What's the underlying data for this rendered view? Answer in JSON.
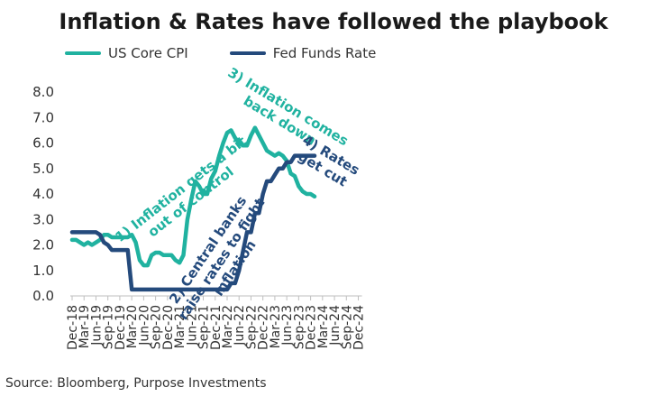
{
  "title": "Inflation & Rates have followed the playbook",
  "source": "Source: Bloomberg, Purpose Investments",
  "colors": {
    "cpi": "#20b2a0",
    "fed": "#244a7c",
    "axis": "#333333"
  },
  "chart_data": {
    "type": "line",
    "title": "Inflation & Rates have followed the playbook",
    "ylim": [
      0,
      8
    ],
    "yticks": [
      "0.0",
      "1.0",
      "2.0",
      "3.0",
      "4.0",
      "5.0",
      "6.0",
      "7.0",
      "8.0"
    ],
    "grid": false,
    "legend_position": "top-left",
    "x_tick_labels": [
      "Dec-18",
      "Mar-19",
      "Jun-19",
      "Sep-19",
      "Dec-19",
      "Mar-20",
      "Jun-20",
      "Sep-20",
      "Dec-20",
      "Mar-21",
      "Jun-21",
      "Sep-21",
      "Dec-21",
      "Mar-22",
      "Jun-22",
      "Sep-22",
      "Dec-22",
      "Mar-23",
      "Jun-23",
      "Sep-23",
      "Dec-23",
      "Mar-24",
      "Jun-24",
      "Sep-24",
      "Dec-24"
    ],
    "series": [
      {
        "name": "US Core CPI",
        "color": "#20b2a0",
        "values": [
          2.2,
          2.2,
          2.1,
          2.0,
          2.1,
          2.0,
          2.1,
          2.2,
          2.4,
          2.4,
          2.3,
          2.3,
          2.3,
          2.3,
          2.3,
          2.4,
          2.1,
          1.4,
          1.2,
          1.2,
          1.6,
          1.7,
          1.7,
          1.6,
          1.6,
          1.6,
          1.4,
          1.3,
          1.6,
          3.0,
          3.8,
          4.5,
          4.3,
          4.0,
          4.0,
          4.6,
          4.9,
          5.5,
          6.0,
          6.4,
          6.5,
          6.2,
          6.0,
          5.9,
          5.9,
          6.3,
          6.6,
          6.3,
          6.0,
          5.7,
          5.6,
          5.5,
          5.6,
          5.5,
          5.3,
          4.8,
          4.7,
          4.3,
          4.1,
          4.0,
          4.0,
          3.9
        ]
      },
      {
        "name": "Fed Funds Rate",
        "color": "#244a7c",
        "values": [
          2.5,
          2.5,
          2.5,
          2.5,
          2.5,
          2.5,
          2.5,
          2.4,
          2.1,
          2.0,
          1.8,
          1.8,
          1.8,
          1.8,
          1.8,
          0.25,
          0.25,
          0.25,
          0.25,
          0.25,
          0.25,
          0.25,
          0.25,
          0.25,
          0.25,
          0.25,
          0.25,
          0.25,
          0.25,
          0.25,
          0.25,
          0.25,
          0.25,
          0.25,
          0.25,
          0.25,
          0.25,
          0.25,
          0.25,
          0.25,
          0.5,
          0.5,
          1.0,
          1.75,
          2.5,
          2.5,
          3.25,
          3.25,
          4.0,
          4.5,
          4.5,
          4.75,
          5.0,
          5.0,
          5.25,
          5.25,
          5.5,
          5.5,
          5.5,
          5.5,
          5.5,
          5.5
        ]
      }
    ],
    "annotations": [
      {
        "text": [
          "1) Inflation gets a bit",
          "out of control"
        ],
        "series": "cpi",
        "x": 29.3,
        "y": 3.8,
        "angle": -38
      },
      {
        "text": [
          "2) Central banks",
          "raise rates to fight",
          "inflation"
        ],
        "series": "fed",
        "x": 38.5,
        "y": 1.35,
        "angle": -56
      },
      {
        "text": [
          "3) Inflation comes",
          "back down"
        ],
        "series": "cpi",
        "x": 52.7,
        "y": 7.0,
        "angle": 31
      },
      {
        "text": [
          "4) Rates",
          "get cut"
        ],
        "series": "fed",
        "x": 63.5,
        "y": 5.1,
        "angle": 31
      }
    ]
  }
}
